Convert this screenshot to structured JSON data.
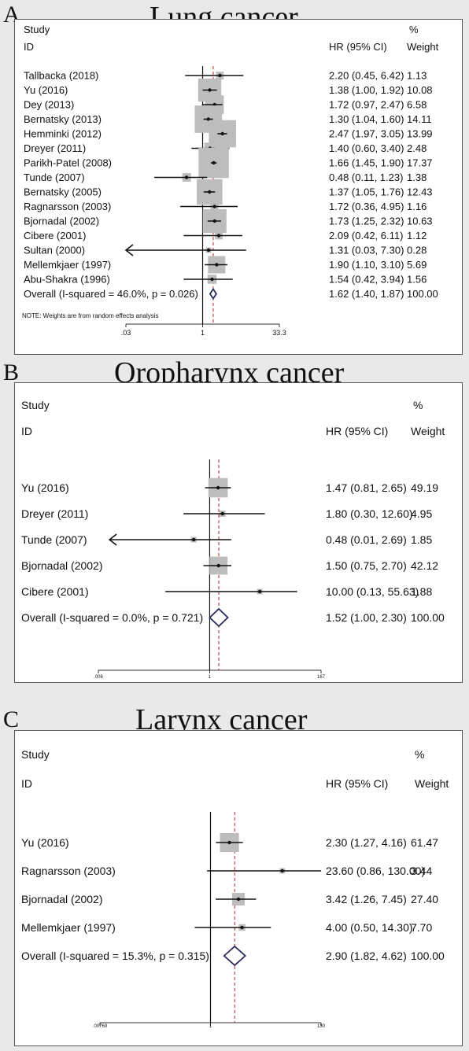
{
  "panels": [
    {
      "letter": "A",
      "title": "Lung cancer",
      "chart_data": {
        "type": "forest",
        "scale": "log",
        "header": {
          "study": "Study",
          "id": "ID",
          "hr": "HR (95% CI)",
          "pct": "%",
          "weight": "Weight"
        },
        "ticks": [
          {
            "value": 0.03,
            "label": ".03"
          },
          {
            "value": 1,
            "label": "1"
          },
          {
            "value": 33.3,
            "label": "33.3"
          }
        ],
        "overall_value": 1.62,
        "studies": [
          {
            "label": "Tallbacka (2018)",
            "hr": 2.2,
            "lo": 0.45,
            "hi": 6.42,
            "ci_text": "2.20 (0.45, 6.42)",
            "weight": 1.13,
            "weight_text": "1.13"
          },
          {
            "label": "Yu (2016)",
            "hr": 1.38,
            "lo": 1.0,
            "hi": 1.92,
            "ci_text": "1.38 (1.00, 1.92)",
            "weight": 10.08,
            "weight_text": "10.08"
          },
          {
            "label": "Dey (2013)",
            "hr": 1.72,
            "lo": 0.97,
            "hi": 2.47,
            "ci_text": "1.72 (0.97, 2.47)",
            "weight": 6.58,
            "weight_text": "6.58"
          },
          {
            "label": "Bernatsky (2013)",
            "hr": 1.3,
            "lo": 1.04,
            "hi": 1.6,
            "ci_text": "1.30 (1.04, 1.60)",
            "weight": 14.11,
            "weight_text": "14.11"
          },
          {
            "label": "Hemminki (2012)",
            "hr": 2.47,
            "lo": 1.97,
            "hi": 3.05,
            "ci_text": "2.47 (1.97, 3.05)",
            "weight": 13.99,
            "weight_text": "13.99"
          },
          {
            "label": "Dreyer (2011)",
            "hr": 1.4,
            "lo": 0.6,
            "hi": 3.4,
            "ci_text": "1.40 (0.60, 3.40)",
            "weight": 2.48,
            "weight_text": "2.48"
          },
          {
            "label": "Parikh-Patel (2008)",
            "hr": 1.66,
            "lo": 1.45,
            "hi": 1.9,
            "ci_text": "1.66 (1.45, 1.90)",
            "weight": 17.37,
            "weight_text": "17.37"
          },
          {
            "label": "Tunde (2007)",
            "hr": 0.48,
            "lo": 0.11,
            "hi": 1.23,
            "ci_text": "0.48 (0.11, 1.23)",
            "weight": 1.38,
            "weight_text": "1.38"
          },
          {
            "label": "Bernatsky (2005)",
            "hr": 1.37,
            "lo": 1.05,
            "hi": 1.76,
            "ci_text": "1.37 (1.05, 1.76)",
            "weight": 12.43,
            "weight_text": "12.43"
          },
          {
            "label": "Ragnarsson (2003)",
            "hr": 1.72,
            "lo": 0.36,
            "hi": 4.95,
            "ci_text": "1.72 (0.36, 4.95)",
            "weight": 1.16,
            "weight_text": "1.16"
          },
          {
            "label": "Bjornadal (2002)",
            "hr": 1.73,
            "lo": 1.25,
            "hi": 2.32,
            "ci_text": "1.73 (1.25, 2.32)",
            "weight": 10.63,
            "weight_text": "10.63"
          },
          {
            "label": "Cibere (2001)",
            "hr": 2.09,
            "lo": 0.42,
            "hi": 6.11,
            "ci_text": "2.09 (0.42, 6.11)",
            "weight": 1.12,
            "weight_text": "1.12"
          },
          {
            "label": "Sultan (2000)",
            "hr": 1.31,
            "lo": 0.03,
            "hi": 7.3,
            "ci_text": "1.31 (0.03, 7.30)",
            "weight": 0.28,
            "weight_text": "0.28",
            "arrow_left": true
          },
          {
            "label": "Mellemkjaer (1997)",
            "hr": 1.9,
            "lo": 1.1,
            "hi": 3.1,
            "ci_text": "1.90 (1.10, 3.10)",
            "weight": 5.69,
            "weight_text": "5.69"
          },
          {
            "label": "Abu-Shakra (1996)",
            "hr": 1.54,
            "lo": 0.42,
            "hi": 3.94,
            "ci_text": "1.54 (0.42, 3.94)",
            "weight": 1.56,
            "weight_text": "1.56"
          }
        ],
        "overall": {
          "label": "Overall  (I-squared = 46.0%, p = 0.026)",
          "hr": 1.62,
          "lo": 1.4,
          "hi": 1.87,
          "ci_text": "1.62 (1.40, 1.87)",
          "weight_text": "100.00"
        },
        "note": "NOTE: Weights are from random effects analysis"
      }
    },
    {
      "letter": "B",
      "title": "Oropharynx cancer",
      "chart_data": {
        "type": "forest",
        "scale": "log",
        "header": {
          "study": "Study",
          "id": "ID",
          "hr": "HR (95% CI)",
          "pct": "%",
          "weight": "Weight"
        },
        "ticks": [
          {
            "value": 0.006,
            "label": ".006"
          },
          {
            "value": 1,
            "label": "1"
          },
          {
            "value": 167,
            "label": "167"
          }
        ],
        "overall_value": 1.52,
        "studies": [
          {
            "label": "Yu (2016)",
            "hr": 1.47,
            "lo": 0.81,
            "hi": 2.65,
            "ci_text": "1.47 (0.81, 2.65)",
            "weight": 49.19,
            "weight_text": "49.19"
          },
          {
            "label": "Dreyer (2011)",
            "hr": 1.8,
            "lo": 0.3,
            "hi": 12.6,
            "ci_text": "1.80 (0.30, 12.60)",
            "weight": 4.95,
            "weight_text": "4.95"
          },
          {
            "label": "Tunde (2007)",
            "hr": 0.48,
            "lo": 0.01,
            "hi": 2.69,
            "ci_text": "0.48 (0.01, 2.69)",
            "weight": 1.85,
            "weight_text": "1.85",
            "arrow_left": true
          },
          {
            "label": "Bjornadal (2002)",
            "hr": 1.5,
            "lo": 0.75,
            "hi": 2.7,
            "ci_text": "1.50 (0.75, 2.70)",
            "weight": 42.12,
            "weight_text": "42.12"
          },
          {
            "label": "Cibere (2001)",
            "hr": 10.0,
            "lo": 0.13,
            "hi": 55.63,
            "ci_text": "10.00 (0.13, 55.63)",
            "weight": 1.88,
            "weight_text": "1.88"
          }
        ],
        "overall": {
          "label": "Overall  (I-squared = 0.0%, p = 0.721)",
          "hr": 1.52,
          "lo": 1.0,
          "hi": 2.3,
          "ci_text": "1.52 (1.00, 2.30)",
          "weight_text": "100.00"
        },
        "note": ""
      }
    },
    {
      "letter": "C",
      "title": "Larynx cancer",
      "chart_data": {
        "type": "forest",
        "scale": "log",
        "header": {
          "study": "Study",
          "id": "ID",
          "hr": "HR (95% CI)",
          "pct": "%",
          "weight": "Weight"
        },
        "ticks": [
          {
            "value": 0.00769,
            "label": ".00769"
          },
          {
            "value": 1,
            "label": "1"
          },
          {
            "value": 130,
            "label": "130"
          }
        ],
        "overall_value": 2.9,
        "studies": [
          {
            "label": "Yu (2016)",
            "hr": 2.3,
            "lo": 1.27,
            "hi": 4.16,
            "ci_text": "2.30 (1.27, 4.16)",
            "weight": 61.47,
            "weight_text": "61.47"
          },
          {
            "label": "Ragnarsson (2003)",
            "hr": 23.6,
            "lo": 0.86,
            "hi": 130.0,
            "ci_text": "23.60 (0.86, 130.00)",
            "weight": 3.44,
            "weight_text": "3.44"
          },
          {
            "label": "Bjornadal (2002)",
            "hr": 3.42,
            "lo": 1.26,
            "hi": 7.45,
            "ci_text": "3.42 (1.26, 7.45)",
            "weight": 27.4,
            "weight_text": "27.40"
          },
          {
            "label": "Mellemkjaer (1997)",
            "hr": 4.0,
            "lo": 0.5,
            "hi": 14.3,
            "ci_text": "4.00 (0.50, 14.30)",
            "weight": 7.7,
            "weight_text": "7.70"
          }
        ],
        "overall": {
          "label": "Overall  (I-squared = 15.3%, p = 0.315)",
          "hr": 2.9,
          "lo": 1.82,
          "hi": 4.62,
          "ci_text": "2.90 (1.82, 4.62)",
          "weight_text": "100.00"
        },
        "note": ""
      }
    }
  ]
}
